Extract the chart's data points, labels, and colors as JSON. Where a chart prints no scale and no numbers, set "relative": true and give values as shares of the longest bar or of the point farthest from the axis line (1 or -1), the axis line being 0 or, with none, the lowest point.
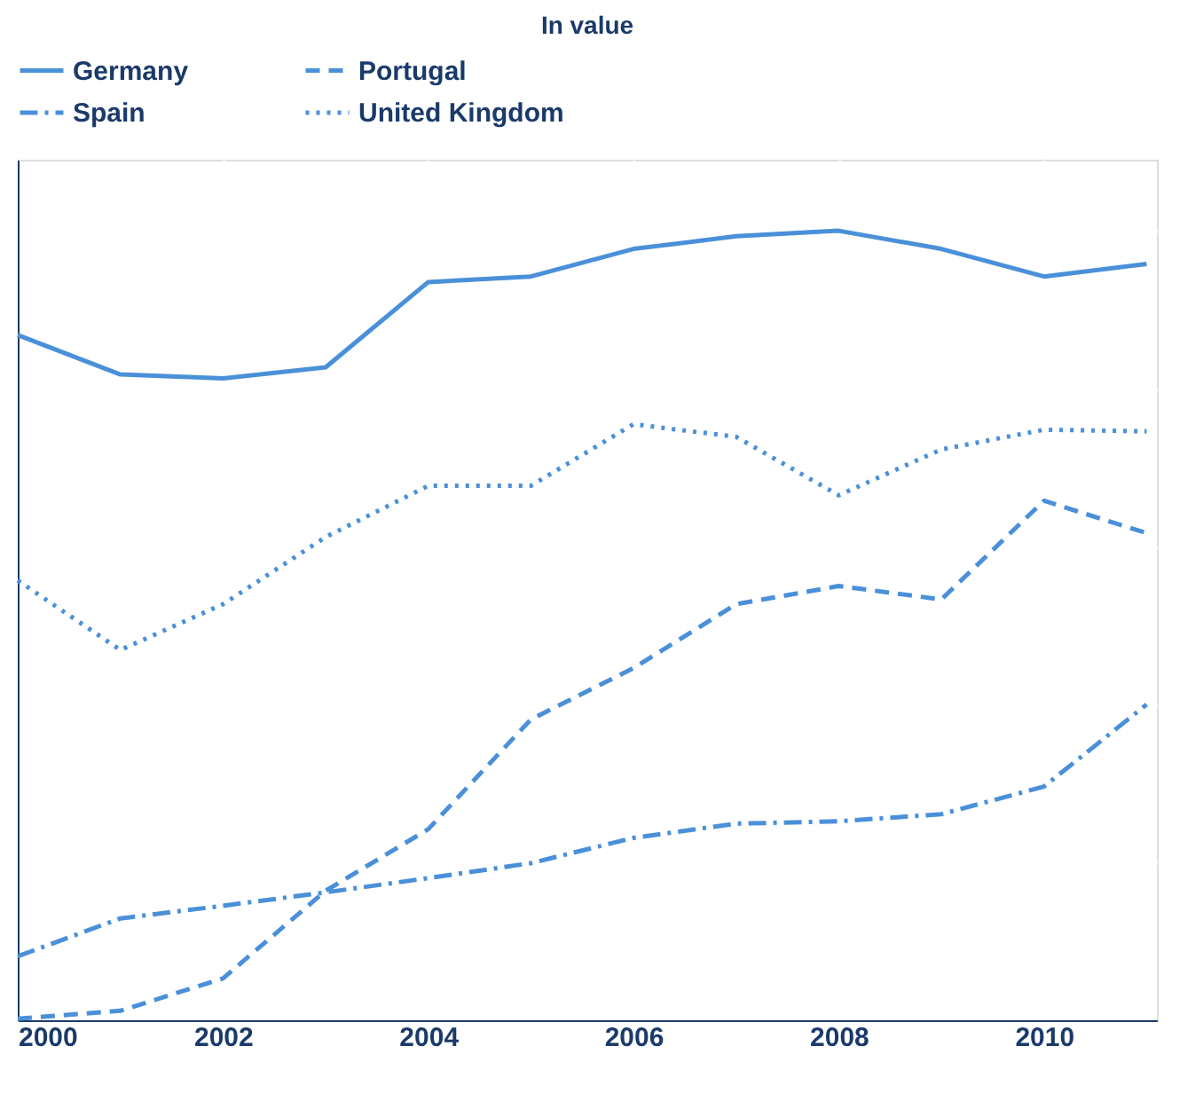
{
  "chart_data": {
    "type": "line",
    "title": "In value",
    "relative": true,
    "x": [
      2000,
      2001,
      2002,
      2003,
      2004,
      2005,
      2006,
      2007,
      2008,
      2009,
      2010,
      2011
    ],
    "xlim": [
      2000,
      2011.1
    ],
    "xticks": [
      2000,
      2002,
      2004,
      2006,
      2008,
      2010
    ],
    "grid": true,
    "legend": "top",
    "marker": "none",
    "series": [
      {
        "name": "Germany",
        "color": "#4a90d9",
        "line_style": "solid",
        "values": [
          0.868,
          0.818,
          0.813,
          0.827,
          0.935,
          0.942,
          0.977,
          0.993,
          1.0,
          0.977,
          0.942,
          0.958
        ]
      },
      {
        "name": "Portugal",
        "color": "#4a90d9",
        "line_style": "dashed",
        "values": [
          0.002,
          0.012,
          0.053,
          0.164,
          0.242,
          0.381,
          0.446,
          0.527,
          0.55,
          0.533,
          0.658,
          0.617
        ]
      },
      {
        "name": "Spain",
        "color": "#4a90d9",
        "line_style": "dashdot",
        "values": [
          0.081,
          0.129,
          0.145,
          0.162,
          0.18,
          0.199,
          0.231,
          0.249,
          0.252,
          0.261,
          0.296,
          0.4
        ]
      },
      {
        "name": "United Kingdom",
        "color": "#4a90d9",
        "line_style": "dotted",
        "values": [
          0.557,
          0.469,
          0.527,
          0.612,
          0.677,
          0.677,
          0.755,
          0.739,
          0.665,
          0.723,
          0.748,
          0.746
        ]
      }
    ]
  }
}
